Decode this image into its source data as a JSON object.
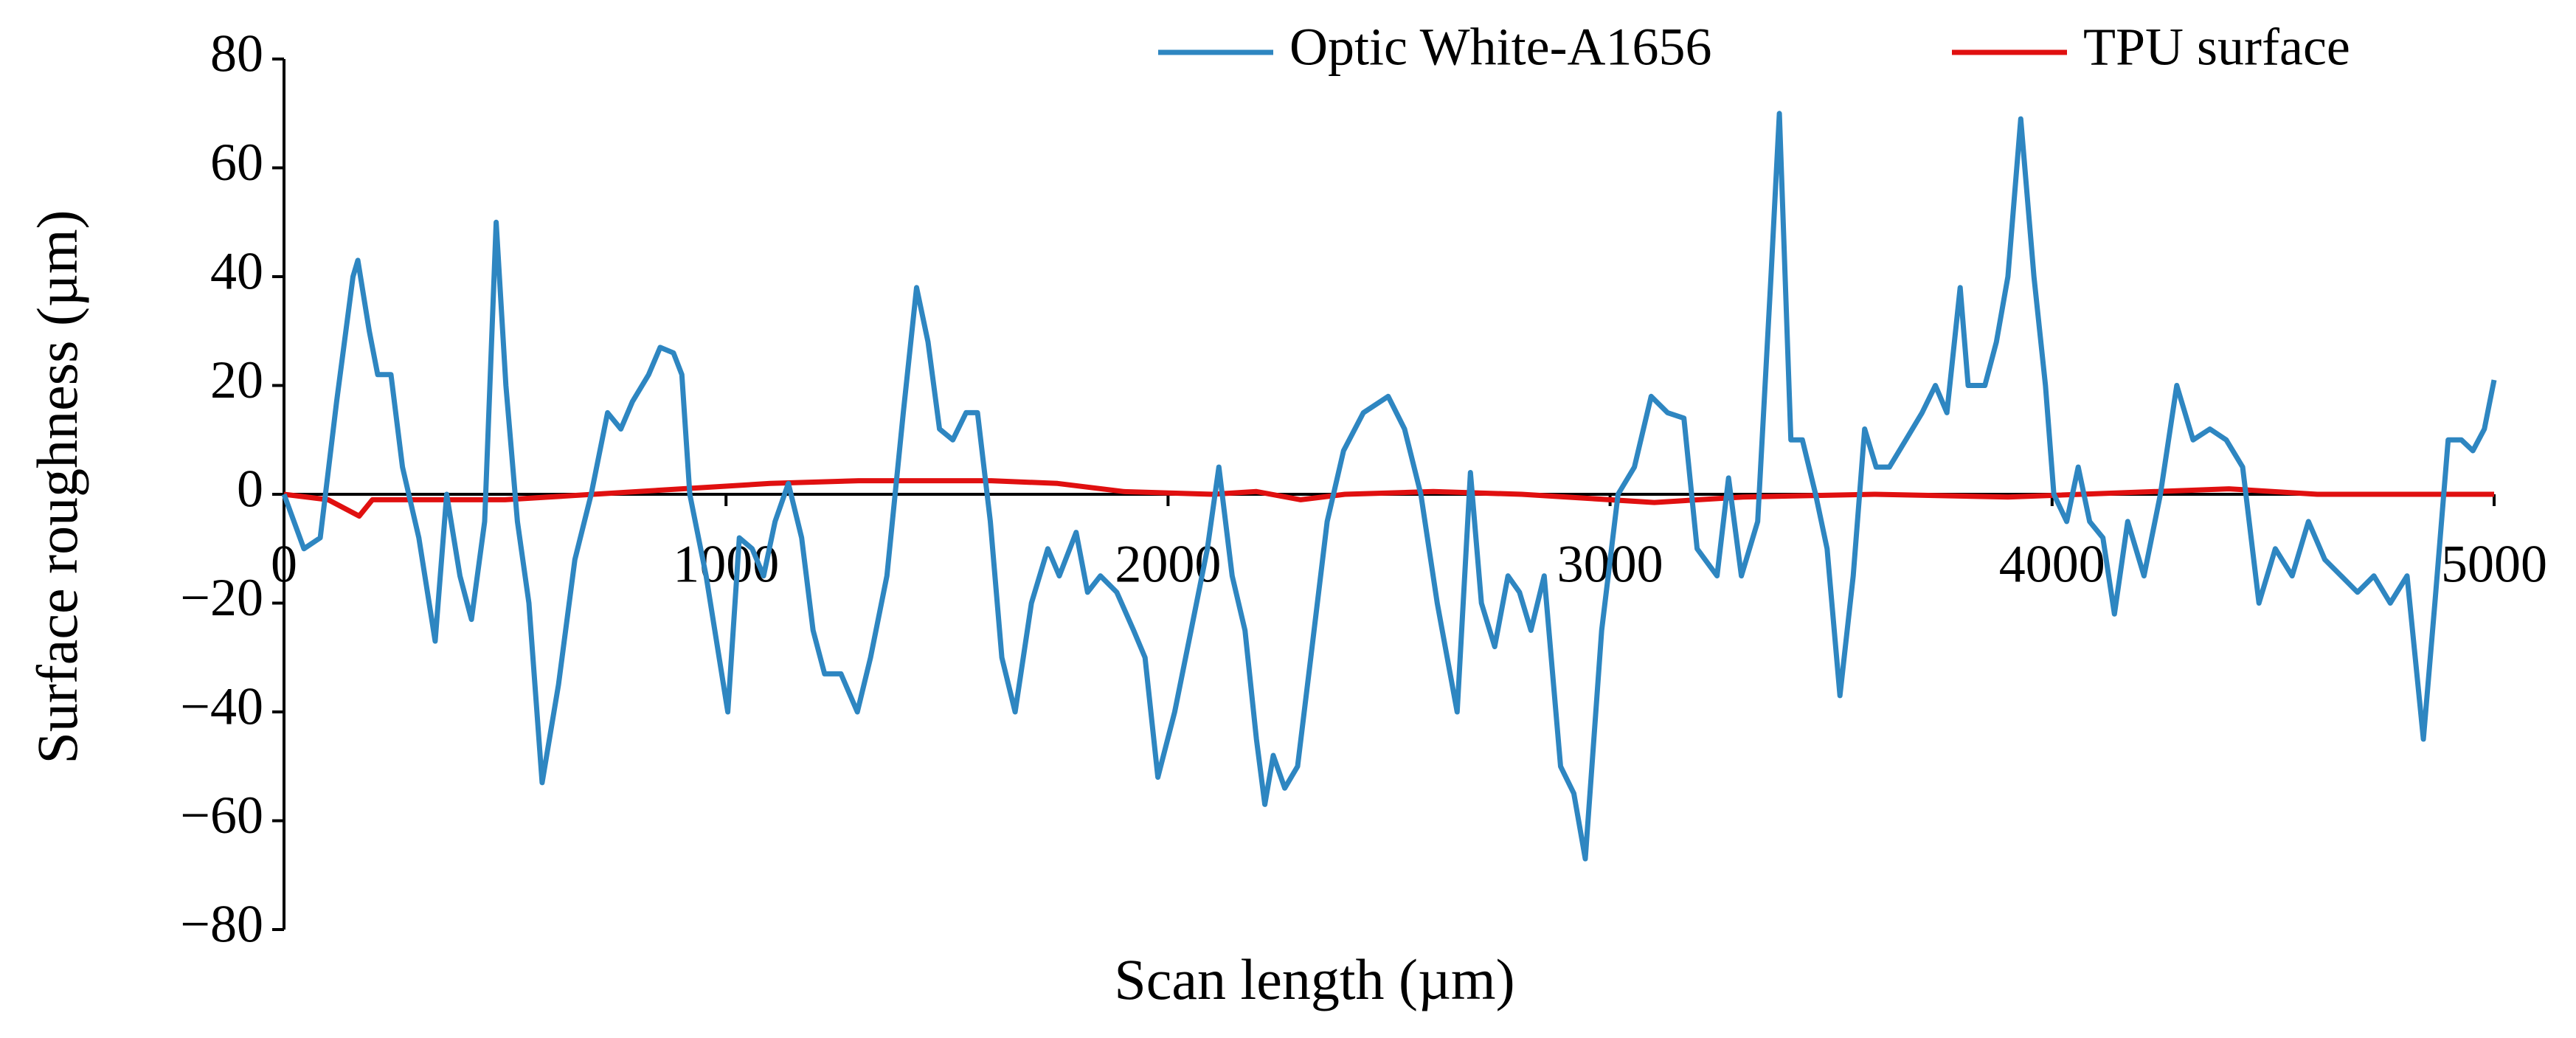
{
  "chart_data": {
    "type": "line",
    "xlabel": "Scan length (µm)",
    "ylabel": "Surface  roughness (µm)",
    "xlim": [
      0,
      5000
    ],
    "xticks": [
      0,
      1000,
      2000,
      3000,
      4000,
      5000
    ],
    "ylim": [
      -80,
      80
    ],
    "yticks": [
      {
        "value": -80,
        "label": "−80"
      },
      {
        "value": -60,
        "label": "−60"
      },
      {
        "value": -40,
        "label": "−40"
      },
      {
        "value": -20,
        "label": "−20"
      },
      0,
      20,
      40,
      60,
      80
    ],
    "legend": "top",
    "series": [
      {
        "name": "Optic White-A1656",
        "color": "#2e86c1",
        "x": [
          0,
          45,
          82,
          119,
          156,
          167,
          193,
          212,
          242,
          268,
          305,
          342,
          368,
          398,
          424,
          454,
          480,
          502,
          528,
          554,
          584,
          621,
          658,
          695,
          732,
          762,
          788,
          825,
          851,
          881,
          900,
          918,
          955,
          1004,
          1030,
          1059,
          1085,
          1111,
          1141,
          1171,
          1197,
          1223,
          1260,
          1297,
          1327,
          1364,
          1401,
          1431,
          1457,
          1483,
          1513,
          1543,
          1569,
          1598,
          1624,
          1654,
          1691,
          1728,
          1754,
          1792,
          1818,
          1847,
          1884,
          1922,
          1948,
          1977,
          2015,
          2052,
          2089,
          2115,
          2145,
          2174,
          2200,
          2219,
          2238,
          2264,
          2293,
          2323,
          2360,
          2397,
          2442,
          2498,
          2535,
          2572,
          2609,
          2654,
          2684,
          2709,
          2739,
          2769,
          2795,
          2821,
          2851,
          2888,
          2918,
          2944,
          2981,
          3018,
          3055,
          3093,
          3130,
          3167,
          3197,
          3242,
          3268,
          3297,
          3334,
          3364,
          3383,
          3409,
          3435,
          3465,
          3491,
          3520,
          3550,
          3576,
          3602,
          3632,
          3669,
          3706,
          3736,
          3762,
          3792,
          3810,
          3848,
          3874,
          3900,
          3929,
          3959,
          3985,
          4004,
          4033,
          4059,
          4085,
          4115,
          4141,
          4171,
          4208,
          4245,
          4282,
          4319,
          4357,
          4394,
          4431,
          4468,
          4505,
          4543,
          4580,
          4617,
          4654,
          4691,
          4728,
          4765,
          4803,
          4840,
          4866,
          4896,
          4926,
          4952,
          4978,
          5000
        ],
        "values": [
          0,
          -10,
          -8,
          17,
          40,
          43,
          30,
          22,
          22,
          5,
          -8,
          -27,
          0,
          -15,
          -23,
          -5,
          50,
          20,
          -5,
          -20,
          -53,
          -35,
          -12,
          0,
          15,
          12,
          17,
          22,
          27,
          26,
          22,
          0,
          -15,
          -40,
          -8,
          -10,
          -15,
          -5,
          2,
          -8,
          -25,
          -33,
          -33,
          -40,
          -30,
          -15,
          15,
          38,
          28,
          12,
          10,
          15,
          15,
          -5,
          -30,
          -40,
          -20,
          -10,
          -15,
          -7,
          -18,
          -15,
          -18,
          -25,
          -30,
          -52,
          -40,
          -25,
          -10,
          5,
          -15,
          -25,
          -45,
          -57,
          -48,
          -54,
          -50,
          -30,
          -5,
          8,
          15,
          18,
          12,
          0,
          -20,
          -40,
          4,
          -20,
          -28,
          -15,
          -18,
          -25,
          -15,
          -50,
          -55,
          -67,
          -25,
          0,
          5,
          18,
          15,
          14,
          -10,
          -15,
          3,
          -15,
          -5,
          40,
          70,
          10,
          10,
          0,
          -10,
          -37,
          -15,
          12,
          5,
          5,
          10,
          15,
          20,
          15,
          38,
          20,
          20,
          28,
          40,
          69,
          40,
          20,
          0,
          -5,
          5,
          -5,
          -8,
          -22,
          -5,
          -15,
          0,
          20,
          10,
          12,
          10,
          5,
          -20,
          -10,
          -15,
          -5,
          -12,
          -15,
          -18,
          -15,
          -20,
          -15,
          -45,
          -20,
          10,
          10,
          8,
          12,
          21
        ]
      },
      {
        "name": "TPU surface",
        "color": "#e01010",
        "x": [
          0,
          100,
          170,
          200,
          500,
          700,
          900,
          1100,
          1300,
          1600,
          1750,
          1900,
          2100,
          2200,
          2300,
          2400,
          2600,
          2800,
          3100,
          3300,
          3600,
          3900,
          4400,
          4600,
          5000
        ],
        "values": [
          0,
          -1,
          -4,
          -1,
          -1,
          0,
          1,
          2,
          2.5,
          2.5,
          2,
          0.5,
          0,
          0.5,
          -1,
          0,
          0.5,
          0,
          -1.5,
          -0.5,
          0,
          -0.5,
          1,
          0,
          0
        ]
      }
    ]
  }
}
